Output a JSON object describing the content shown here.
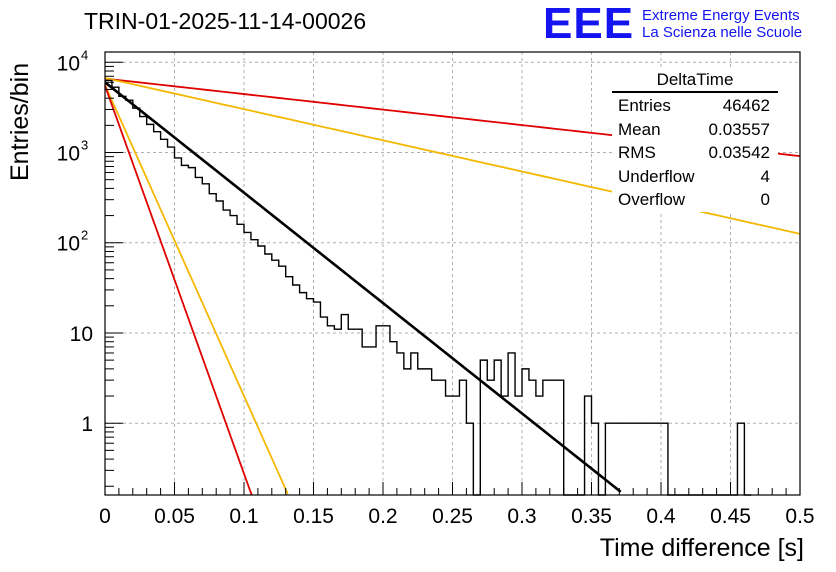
{
  "header": {
    "run_title": "TRIN-01-2025-11-14-00026",
    "logo_mark": "EEE",
    "logo_line1": "Extreme Energy Events",
    "logo_line2": "La Scienza nelle Scuole"
  },
  "stats_box": {
    "title": "DeltaTime",
    "rows": [
      {
        "label": "Entries",
        "value": "46462"
      },
      {
        "label": "Mean",
        "value": "0.03557"
      },
      {
        "label": "RMS",
        "value": "0.03542"
      },
      {
        "label": "Underflow",
        "value": "4"
      },
      {
        "label": "Overflow",
        "value": "0"
      }
    ]
  },
  "colors": {
    "histogram": "#000000",
    "fit": "#000000",
    "red_curves": "#e00000",
    "yellow_curves": "#f5b800",
    "grid": "#b0b0b0"
  },
  "chart_data": {
    "type": "line",
    "title": "TRIN-01-2025-11-14-00026",
    "xlabel": "Time difference [s]",
    "ylabel": "Entries/bin",
    "xlim": [
      0,
      0.5
    ],
    "ylim": [
      0.16,
      13000
    ],
    "y_scale": "log",
    "grid": true,
    "x_ticks": [
      0,
      0.05,
      0.1,
      0.15,
      0.2,
      0.25,
      0.3,
      0.35,
      0.4,
      0.45,
      0.5
    ],
    "x_tick_labels": [
      "0",
      "0.05",
      "0.1",
      "0.15",
      "0.2",
      "0.25",
      "0.3",
      "0.35",
      "0.4",
      "0.45",
      "0.5"
    ],
    "y_ticks": [
      1,
      10,
      100,
      1000,
      10000
    ],
    "y_tick_labels": [
      {
        "base": "1",
        "exp": ""
      },
      {
        "base": "10",
        "exp": ""
      },
      {
        "base": "10",
        "exp": "2"
      },
      {
        "base": "10",
        "exp": "3"
      },
      {
        "base": "10",
        "exp": "4"
      }
    ],
    "histogram": {
      "name": "DeltaTime",
      "bin_width": 0.005,
      "start": 0,
      "counts": [
        6300,
        5300,
        4200,
        3800,
        3100,
        2500,
        2050,
        1700,
        1400,
        1150,
        870,
        720,
        680,
        530,
        450,
        350,
        290,
        230,
        200,
        160,
        130,
        108,
        92,
        75,
        64,
        55,
        42,
        34,
        28,
        24,
        22,
        15,
        12,
        11,
        16,
        11,
        11,
        7,
        7,
        12,
        12,
        8,
        6,
        4,
        6,
        4,
        4,
        3,
        3,
        2,
        2,
        3,
        1,
        0,
        5,
        3,
        5,
        2,
        6,
        2,
        4,
        3,
        2,
        3,
        3,
        3,
        0,
        0,
        0,
        2,
        1,
        0,
        1,
        1,
        1,
        1,
        1,
        1,
        1,
        1,
        1,
        0,
        0,
        0,
        0,
        0,
        0,
        0,
        0,
        0,
        0,
        1,
        0
      ]
    },
    "series": [
      {
        "name": "fit",
        "color_key": "fit",
        "N0": 6000,
        "tau": 0.0355,
        "x": [
          0,
          0.371
        ]
      },
      {
        "name": "red-slow",
        "color_key": "red_curves",
        "N0": 6600,
        "tau": 0.2526,
        "x": [
          0,
          0.5
        ]
      },
      {
        "name": "yellow-slow",
        "color_key": "yellow_curves",
        "N0": 6700,
        "tau": 0.1257,
        "x": [
          0,
          0.5
        ]
      },
      {
        "name": "yellow-fast",
        "color_key": "yellow_curves",
        "N0": 5600,
        "tau": 0.0126,
        "x": [
          0,
          0.1315
        ]
      },
      {
        "name": "red-fast",
        "color_key": "red_curves",
        "N0": 5500,
        "tau": 0.0101,
        "x": [
          0,
          0.1056
        ]
      }
    ]
  }
}
